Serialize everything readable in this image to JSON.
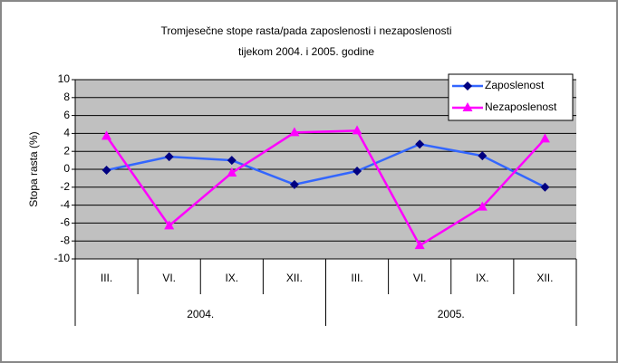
{
  "chart_data": {
    "type": "line",
    "title": [
      "Tromjesečne stope rasta/pada zaposlenosti i nezaposlenosti",
      "tijekom 2004. i 2005.  godine"
    ],
    "ylabel": "Stopa rasta (%)",
    "categories": [
      "III.",
      "VI.",
      "IX.",
      "XII.",
      "III.",
      "VI.",
      "IX.",
      "XII."
    ],
    "category_groups": [
      "2004.",
      "2005."
    ],
    "series": [
      {
        "name": "Zaposlenost",
        "color": "#3366ff",
        "marker_color": "#000080",
        "marker": "diamond",
        "values": [
          -0.1,
          1.4,
          1.0,
          -1.7,
          -0.2,
          2.8,
          1.5,
          -2.0
        ]
      },
      {
        "name": "Nezaposlenost",
        "color": "#ff00ff",
        "marker_color": "#ff00ff",
        "marker": "triangle",
        "values": [
          3.7,
          -6.3,
          -0.4,
          4.1,
          4.3,
          -8.5,
          -4.2,
          3.4
        ]
      }
    ],
    "ylim": [
      -10,
      10
    ],
    "yticks": [
      -10,
      -8,
      -6,
      -4,
      -2,
      0,
      2,
      4,
      6,
      8,
      10
    ],
    "grid": true,
    "legend": "top-right",
    "plot_background": "#c0c0c0"
  }
}
